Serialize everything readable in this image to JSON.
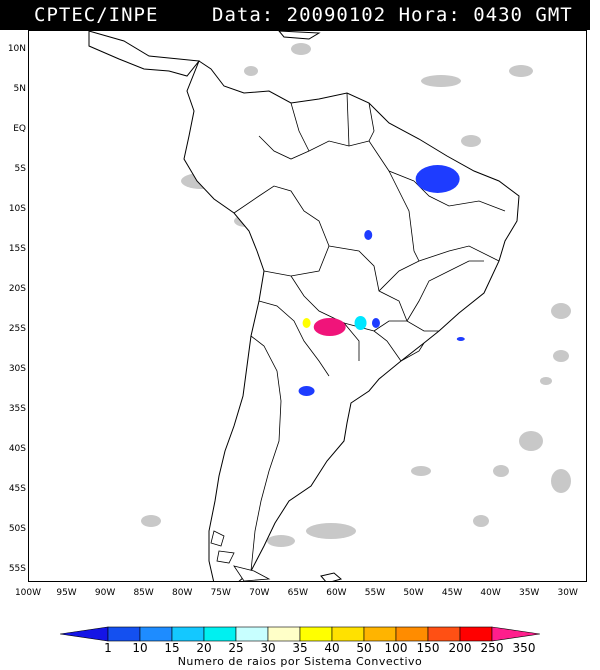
{
  "header": {
    "source": "CPTEC/INPE",
    "datetime": "Data: 20090102 Hora: 0430 GMT"
  },
  "map": {
    "region": "South America",
    "lat_labels": [
      "10N",
      "5N",
      "EQ",
      "5S",
      "10S",
      "15S",
      "20S",
      "25S",
      "30S",
      "35S",
      "40S",
      "45S",
      "50S",
      "55S"
    ],
    "lon_labels": [
      "100W",
      "95W",
      "90W",
      "85W",
      "80W",
      "75W",
      "70W",
      "65W",
      "60W",
      "55W",
      "50W",
      "45W",
      "40W",
      "35W",
      "30W"
    ],
    "cloud_color": "#c8c8c8",
    "coast_color": "#000000"
  },
  "convective_systems": [
    {
      "name": "northeast-brazil",
      "lon": -47,
      "lat": -6,
      "color": "#1e3cff"
    },
    {
      "name": "central-brazil",
      "lon": -56,
      "lat": -13,
      "color": "#1e3cff"
    },
    {
      "name": "paraguay-yellow",
      "lon": -64,
      "lat": -24,
      "color": "#ffff00"
    },
    {
      "name": "paraguay-magenta",
      "lon": -61,
      "lat": -24.5,
      "color": "#f0147a"
    },
    {
      "name": "paraguay-cyan",
      "lon": -57,
      "lat": -24,
      "color": "#00e6ff"
    },
    {
      "name": "paraguay-blue",
      "lon": -55,
      "lat": -24,
      "color": "#1e3cff"
    },
    {
      "name": "argentina-blue",
      "lon": -64,
      "lat": -32.5,
      "color": "#1e3cff"
    },
    {
      "name": "atlantic-blue",
      "lon": -44,
      "lat": -26,
      "color": "#1e3cff"
    }
  ],
  "colorbar": {
    "title": "Numero de raios por Sistema Convectivo",
    "labels": [
      "1",
      "10",
      "15",
      "20",
      "25",
      "30",
      "35",
      "40",
      "50",
      "100",
      "150",
      "200",
      "250",
      "350"
    ],
    "colors": [
      "#1414e6",
      "#1450f0",
      "#1e8cff",
      "#14c8ff",
      "#00f0f0",
      "#c8ffff",
      "#ffffc8",
      "#ffff00",
      "#ffe100",
      "#ffb400",
      "#ff8c00",
      "#ff5014",
      "#ff0000",
      "#ff1e8c"
    ]
  }
}
